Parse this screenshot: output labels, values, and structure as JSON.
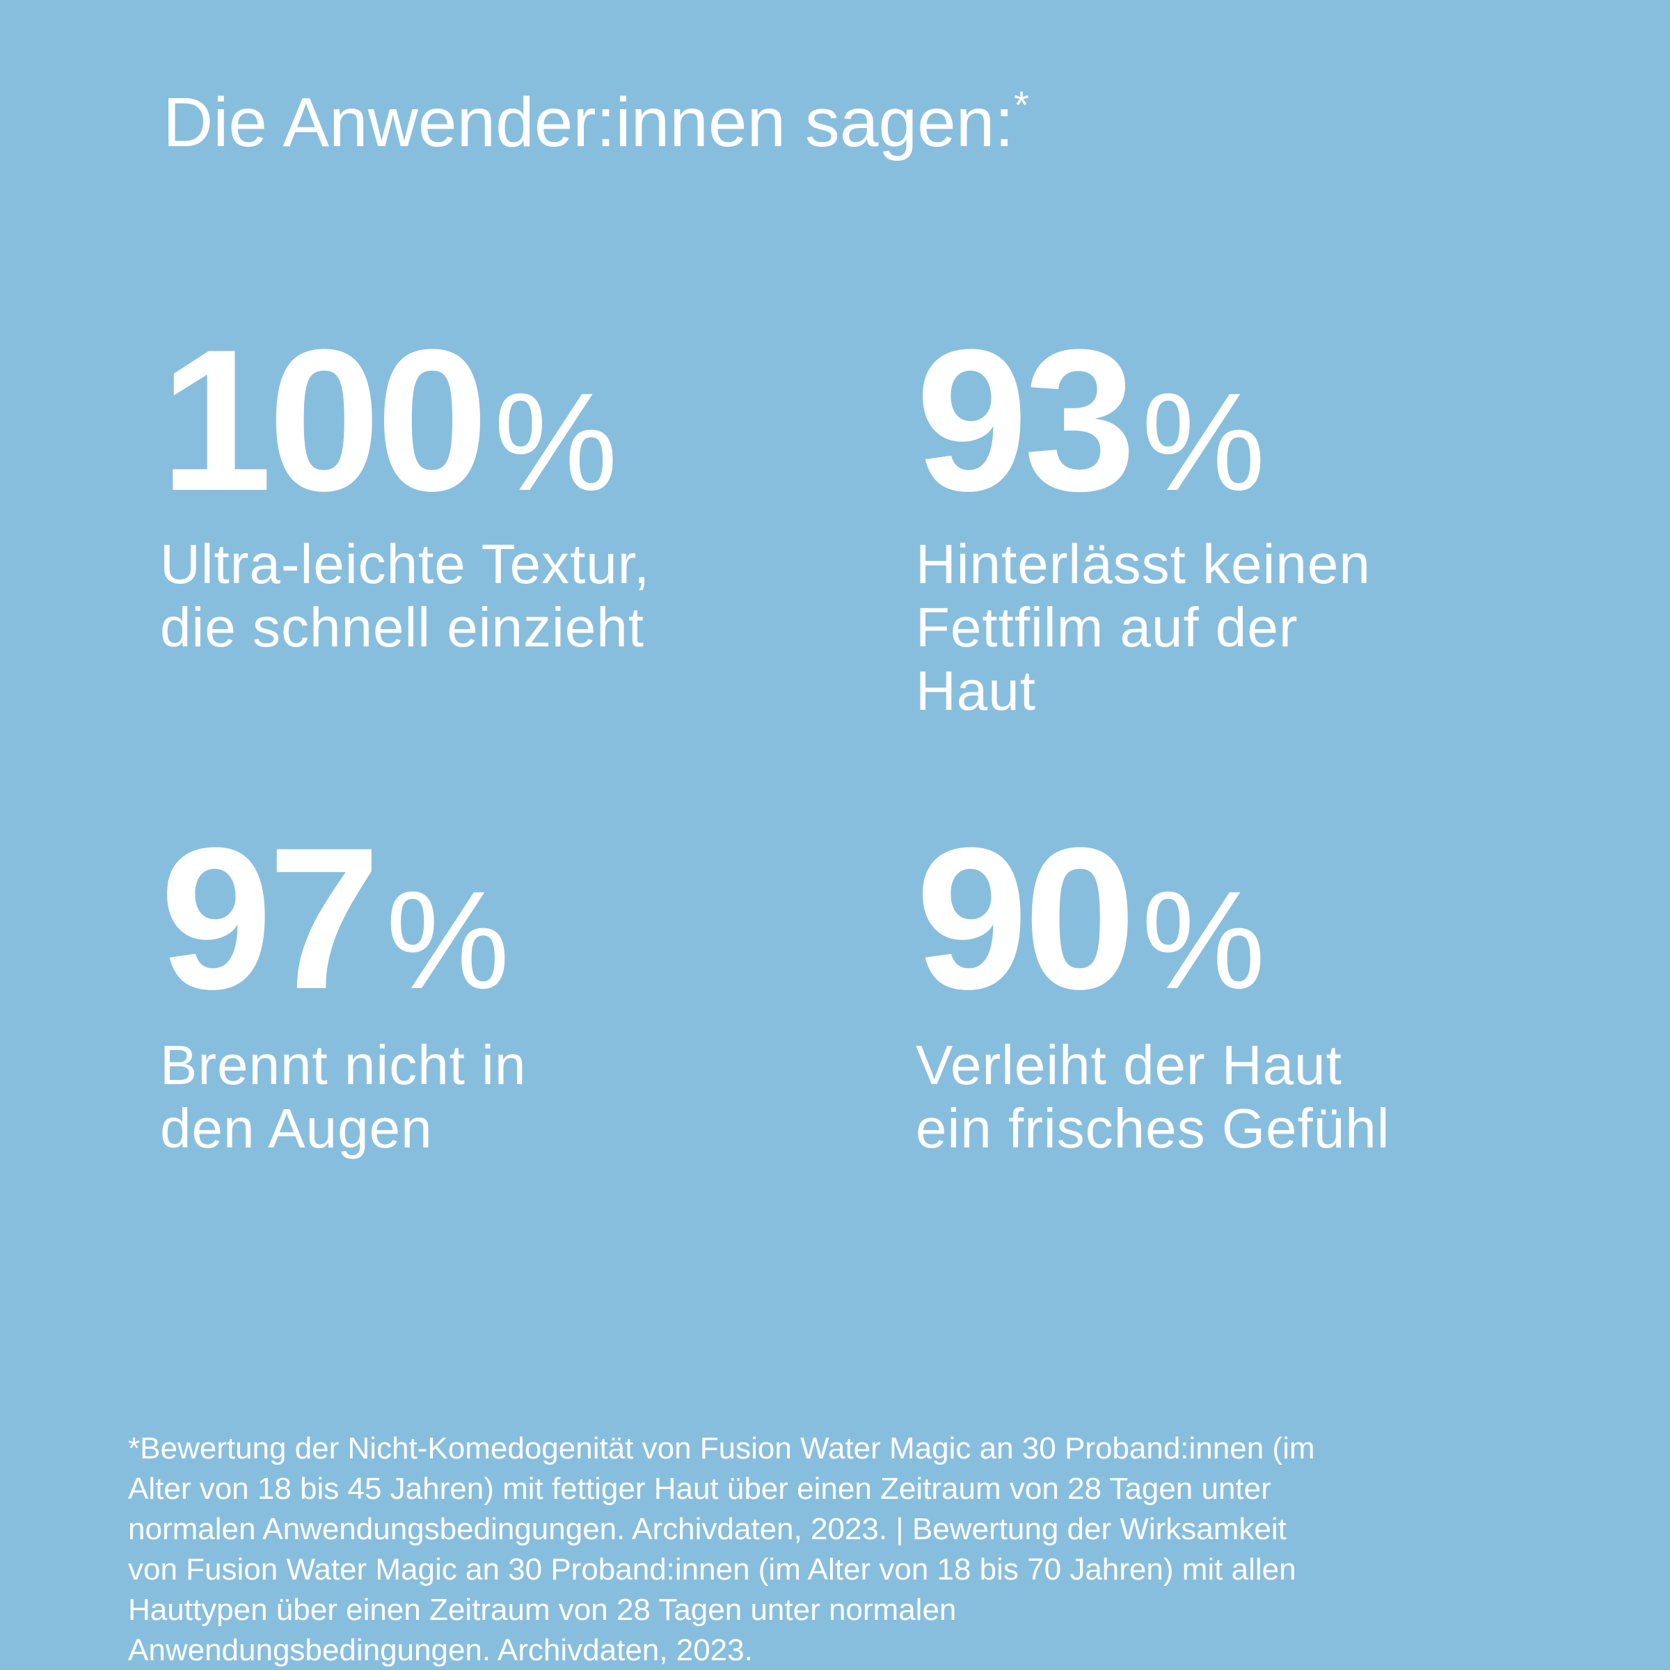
{
  "title": "Die Anwender:innen sagen:",
  "title_mark": "*",
  "stats": [
    {
      "number": "100",
      "unit": "%",
      "lines": [
        "Ultra-leichte Textur,",
        "die schnell einzieht"
      ]
    },
    {
      "number": "93",
      "unit": "%",
      "lines": [
        "Hinterlässt keinen",
        "Fettfilm auf der",
        "Haut"
      ]
    },
    {
      "number": "97",
      "unit": "%",
      "lines": [
        "Brennt nicht in",
        "den Augen"
      ]
    },
    {
      "number": "90",
      "unit": "%",
      "lines": [
        "Verleiht der Haut",
        "ein frisches Gefühl"
      ]
    }
  ],
  "footnote": [
    "*Bewertung der Nicht-Komedogenität von Fusion Water Magic an 30 Proband:innen (im",
    "Alter von 18 bis 45 Jahren) mit fettiger Haut über einen Zeitraum von 28 Tagen unter",
    "normalen Anwendungsbedingungen. Archivdaten, 2023. | Bewertung der Wirksamkeit",
    "von Fusion Water Magic an 30 Proband:innen (im Alter von 18 bis 70 Jahren) mit allen",
    "Hauttypen über einen Zeitraum von 28 Tagen unter normalen",
    "Anwendungsbedingungen. Archivdaten, 2023."
  ]
}
